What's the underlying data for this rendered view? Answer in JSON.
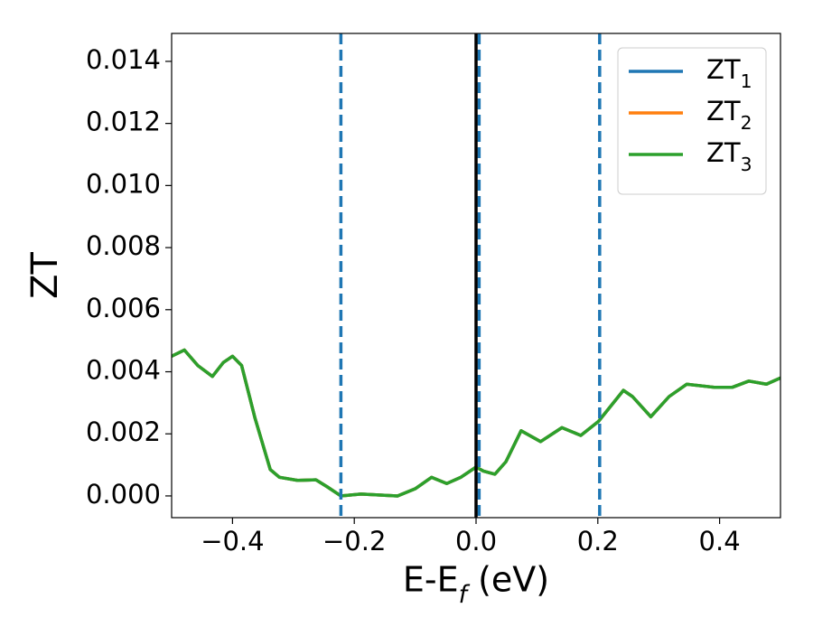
{
  "chart_data": {
    "type": "line",
    "x_label": "E-E_f (eV)",
    "y_label": "ZT",
    "x": [
      -0.5,
      -0.479,
      -0.457,
      -0.433,
      -0.415,
      -0.4,
      -0.385,
      -0.363,
      -0.338,
      -0.323,
      -0.293,
      -0.263,
      -0.245,
      -0.222,
      -0.189,
      -0.129,
      -0.1,
      -0.073,
      -0.048,
      -0.025,
      0.0,
      0.012,
      0.031,
      0.049,
      0.074,
      0.106,
      0.141,
      0.172,
      0.201,
      0.242,
      0.257,
      0.287,
      0.317,
      0.346,
      0.391,
      0.421,
      0.448,
      0.477,
      0.5
    ],
    "series": [
      {
        "name": "ZT_1",
        "color": "#1f77b4",
        "values": [
          0.0045,
          0.0047,
          0.0042,
          0.00385,
          0.0043,
          0.0045,
          0.0042,
          0.0025,
          0.00085,
          0.0006,
          0.0005,
          0.00052,
          0.0003,
          0.0,
          6e-05,
          0.0,
          0.00023,
          0.0006,
          0.0004,
          0.0006,
          0.00093,
          0.0008,
          0.0007,
          0.0011,
          0.0021,
          0.00175,
          0.0022,
          0.00195,
          0.0024,
          0.0034,
          0.0032,
          0.00255,
          0.0032,
          0.0036,
          0.0035,
          0.0035,
          0.0037,
          0.0036,
          0.0038
        ]
      },
      {
        "name": "ZT_2",
        "color": "#ff7f0e",
        "values": [
          0.0045,
          0.0047,
          0.0042,
          0.00385,
          0.0043,
          0.0045,
          0.0042,
          0.0025,
          0.00085,
          0.0006,
          0.0005,
          0.00052,
          0.0003,
          0.0,
          6e-05,
          0.0,
          0.00023,
          0.0006,
          0.0004,
          0.0006,
          0.00093,
          0.0008,
          0.0007,
          0.0011,
          0.0021,
          0.00175,
          0.0022,
          0.00195,
          0.0024,
          0.0034,
          0.0032,
          0.00255,
          0.0032,
          0.0036,
          0.0035,
          0.0035,
          0.0037,
          0.0036,
          0.0038
        ]
      },
      {
        "name": "ZT_3",
        "color": "#2ca02c",
        "values": [
          0.0045,
          0.0047,
          0.0042,
          0.00385,
          0.0043,
          0.0045,
          0.0042,
          0.0025,
          0.00085,
          0.0006,
          0.0005,
          0.00052,
          0.0003,
          0.0,
          6e-05,
          0.0,
          0.00023,
          0.0006,
          0.0004,
          0.0006,
          0.00093,
          0.0008,
          0.0007,
          0.0011,
          0.0021,
          0.00175,
          0.0022,
          0.00195,
          0.0024,
          0.0034,
          0.0032,
          0.00255,
          0.0032,
          0.0036,
          0.0035,
          0.0035,
          0.0037,
          0.0036,
          0.0038
        ]
      }
    ],
    "xlim": [
      -0.5,
      0.5
    ],
    "ylim": [
      -0.0007,
      0.0149
    ],
    "xticks": [
      {
        "value": -0.4,
        "label": "−0.4"
      },
      {
        "value": -0.2,
        "label": "−0.2"
      },
      {
        "value": 0,
        "label": "0.0"
      },
      0.2,
      0.4
    ],
    "yticks": [
      {
        "value": 0,
        "label": "0.000"
      },
      0.002,
      0.004,
      0.006,
      0.008,
      {
        "value": 0.01,
        "label": "0.010"
      },
      0.012,
      0.014
    ],
    "dashed_vlines": [
      -0.222,
      0.005,
      0.203
    ],
    "dashed_vline_color": "#1f77b4",
    "solid_vline": 0,
    "solid_vline_color": "#000000",
    "legend": "upper right",
    "grid": false
  }
}
